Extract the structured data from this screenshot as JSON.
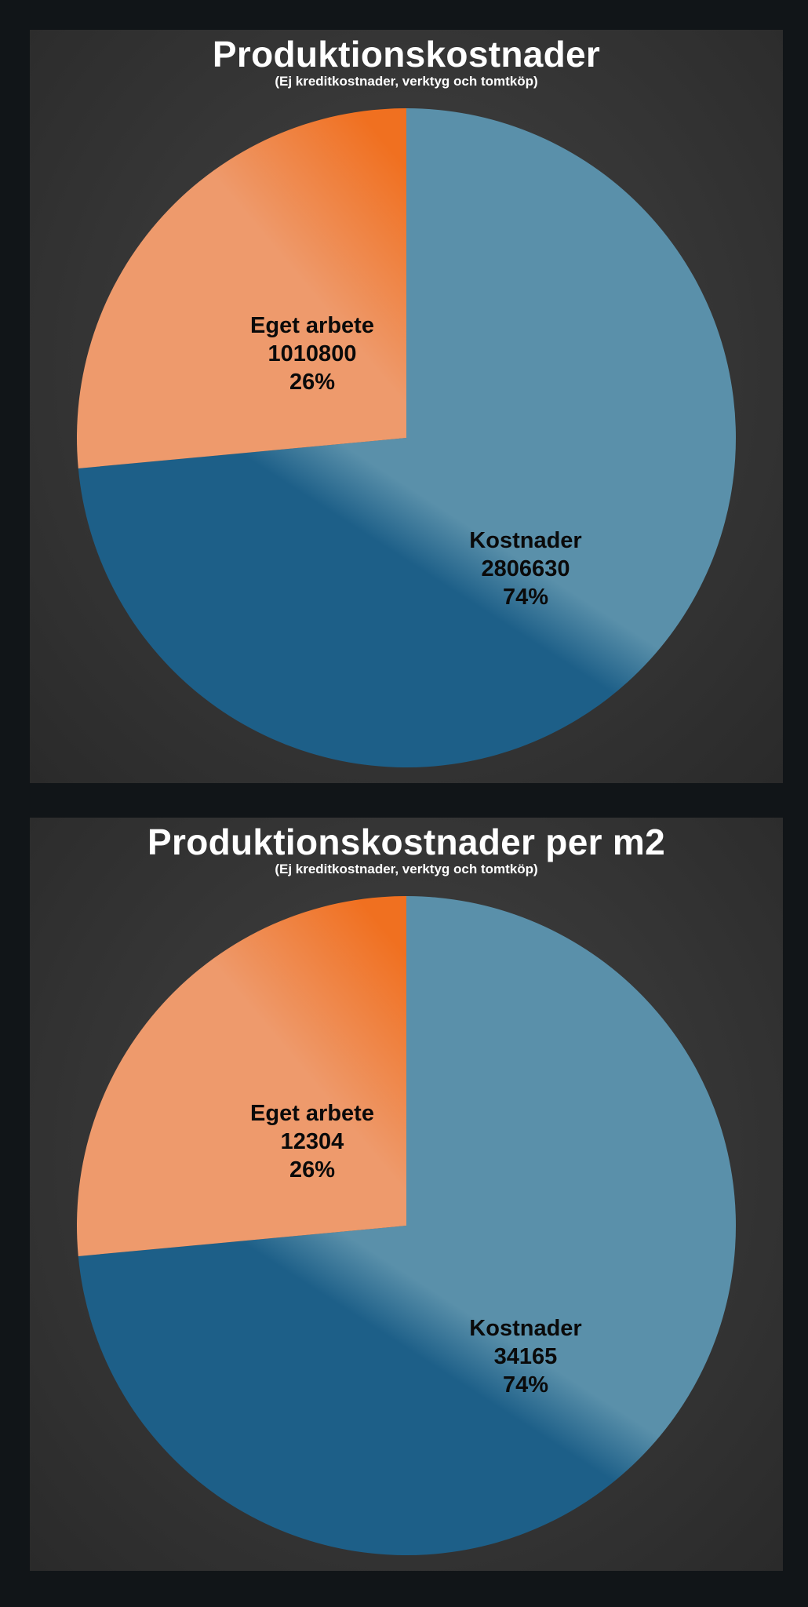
{
  "colors": {
    "background": "#111518",
    "panel": "#3a3a3a",
    "kostnader": "#5a90aa",
    "kostnader_dark": "#1d5f88",
    "eget_arbete": "#ee9a6c",
    "eget_arbete_dark": "#f07020"
  },
  "chart_data": [
    {
      "type": "pie",
      "title": "Produktionskostnader",
      "subtitle": "(Ej kreditkostnader, verktyg och tomtköp)",
      "legend": "none",
      "slices": [
        {
          "name": "Kostnader",
          "value": 2806630,
          "value_label": "2806630",
          "percent_label": "74%",
          "color": "#5a90aa"
        },
        {
          "name": "Eget arbete",
          "value": 1010800,
          "value_label": "1010800",
          "percent_label": "26%",
          "color": "#ee9a6c"
        }
      ]
    },
    {
      "type": "pie",
      "title": "Produktionskostnader per m2",
      "subtitle": "(Ej kreditkostnader, verktyg och tomtköp)",
      "legend": "none",
      "slices": [
        {
          "name": "Kostnader",
          "value": 34165,
          "value_label": "34165",
          "percent_label": "74%",
          "color": "#5a90aa"
        },
        {
          "name": "Eget arbete",
          "value": 12304,
          "value_label": "12304",
          "percent_label": "26%",
          "color": "#ee9a6c"
        }
      ]
    }
  ]
}
